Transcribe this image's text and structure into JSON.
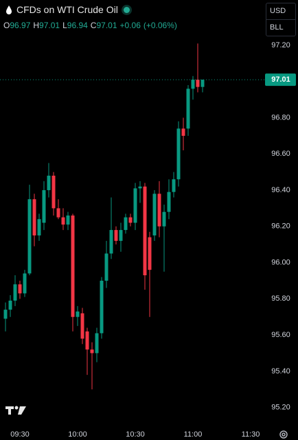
{
  "header": {
    "title": "CFDs on WTI Crude Oil",
    "ohlc": [
      {
        "key": "O",
        "value": "96.97"
      },
      {
        "key": "H",
        "value": "97.01"
      },
      {
        "key": "L",
        "value": "96.94"
      },
      {
        "key": "C",
        "value": "97.01"
      }
    ],
    "change": "+0.06",
    "change_percent": "(+0.06%)"
  },
  "currency_menu": [
    "USD",
    "BLL"
  ],
  "chart_data": {
    "type": "candlestick",
    "categories": [
      null,
      null,
      null,
      "09:30",
      null,
      null,
      null,
      null,
      null,
      null,
      null,
      null,
      null,
      null,
      null,
      "10:00",
      null,
      null,
      null,
      null,
      null,
      null,
      null,
      null,
      null,
      null,
      null,
      "10:30",
      null,
      null,
      null,
      null,
      null,
      null,
      null,
      null,
      null,
      null,
      null,
      "11:00",
      null,
      null,
      null,
      null,
      null,
      null,
      null,
      null,
      null,
      null,
      null,
      "11:30"
    ],
    "open": [
      95.69,
      95.74,
      95.79,
      95.88,
      95.83,
      95.94,
      96.35,
      96.15,
      96.22,
      96.4,
      96.48,
      96.3,
      96.25,
      96.21,
      96.26,
      95.7,
      95.72,
      95.62,
      95.52,
      95.5,
      95.61,
      95.9,
      96.05,
      96.18,
      96.12,
      96.18,
      96.25,
      96.22,
      96.41,
      96.42,
      96.14,
      96.15,
      96.38,
      96.2,
      96.28,
      96.39,
      96.46,
      96.74,
      96.74,
      96.96,
      97.01,
      96.97,
      null,
      null,
      null,
      null,
      null,
      null,
      null,
      null,
      null,
      null
    ],
    "high": [
      95.78,
      95.82,
      95.93,
      95.9,
      95.96,
      96.43,
      96.38,
      96.27,
      96.45,
      96.55,
      96.5,
      96.35,
      96.3,
      96.28,
      96.27,
      95.76,
      95.75,
      95.64,
      95.56,
      95.64,
      95.92,
      96.12,
      96.36,
      96.2,
      96.22,
      96.27,
      96.27,
      96.44,
      96.45,
      96.44,
      96.17,
      96.4,
      96.45,
      96.32,
      96.46,
      96.5,
      96.78,
      96.8,
      96.98,
      97.03,
      97.21,
      97.01,
      null,
      null,
      null,
      null,
      null,
      null,
      null,
      null,
      null,
      null
    ],
    "low": [
      95.62,
      95.7,
      95.76,
      95.8,
      95.81,
      95.93,
      96.09,
      96.12,
      96.18,
      96.36,
      96.26,
      96.24,
      96.18,
      96.18,
      95.62,
      95.65,
      95.55,
      95.38,
      95.3,
      95.45,
      95.58,
      95.86,
      96.02,
      96.1,
      96.06,
      96.16,
      96.2,
      96.18,
      96.33,
      95.85,
      95.7,
      96.12,
      96.14,
      95.95,
      96.24,
      96.36,
      96.42,
      96.62,
      96.7,
      96.9,
      96.94,
      96.94,
      null,
      null,
      null,
      null,
      null,
      null,
      null,
      null,
      null,
      null
    ],
    "close": [
      95.74,
      95.79,
      95.88,
      95.83,
      95.94,
      96.35,
      96.15,
      96.24,
      96.4,
      96.48,
      96.3,
      96.25,
      96.21,
      96.26,
      95.7,
      95.73,
      95.58,
      95.52,
      95.5,
      95.61,
      95.9,
      96.05,
      96.18,
      96.12,
      96.18,
      96.25,
      96.22,
      96.41,
      96.42,
      95.93,
      95.96,
      96.38,
      96.2,
      96.28,
      96.39,
      96.46,
      96.74,
      96.7,
      96.96,
      97.01,
      96.97,
      97.01,
      null,
      null,
      null,
      null,
      null,
      null,
      null,
      null,
      null,
      null
    ],
    "up_color": "#089981",
    "down_color": "#f23645",
    "ylim": [
      95.1,
      97.45
    ],
    "yticks": [
      {
        "value": 95.2,
        "label": "95.20"
      },
      {
        "value": 95.4,
        "label": "95.40"
      },
      {
        "value": 95.6,
        "label": "95.60"
      },
      {
        "value": 95.8,
        "label": "95.80"
      },
      {
        "value": 96.0,
        "label": "96.00"
      },
      {
        "value": 96.2,
        "label": "96.20"
      },
      {
        "value": 96.4,
        "label": "96.40"
      },
      {
        "value": 96.6,
        "label": "96.60"
      },
      {
        "value": 96.8,
        "label": "96.80"
      },
      {
        "value": 97.2,
        "label": "97.20"
      }
    ],
    "last_price": 97.01,
    "grid": false
  }
}
